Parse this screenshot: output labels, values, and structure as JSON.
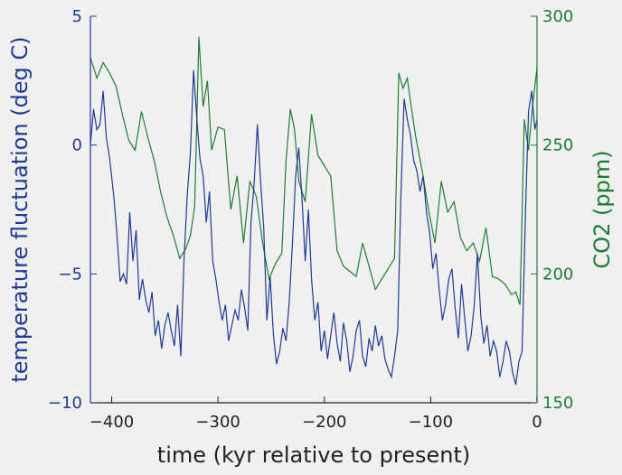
{
  "colors": {
    "background": "#f0f0f0",
    "left_axis": "#1f3a93",
    "right_axis": "#1e7d32",
    "temperature_line": "#1f3a93",
    "co2_line": "#1e7d32",
    "bottom_axis": "#222222"
  },
  "chart_data": {
    "type": "line",
    "title": "",
    "xlabel": "time (kyr relative to present)",
    "ylabel_left": "temperature fluctuation (deg C)",
    "ylabel_right": "CO2 (ppm)",
    "xlim": [
      -420,
      0
    ],
    "ylim_left": [
      -10,
      5
    ],
    "ylim_right": [
      150,
      300
    ],
    "x_ticks": [
      -400,
      -300,
      -200,
      -100,
      0
    ],
    "x_tick_labels": [
      "−400",
      "−300",
      "−200",
      "−100",
      "0"
    ],
    "y_left_ticks": [
      5,
      0,
      -5,
      -10
    ],
    "y_left_tick_labels": [
      "5",
      "0",
      "−5",
      "−10"
    ],
    "y_right_ticks": [
      300,
      250,
      200,
      150
    ],
    "y_right_tick_labels": [
      "300",
      "250",
      "200",
      "150"
    ],
    "grid": false,
    "legend": "none",
    "series": [
      {
        "axis": "left",
        "x": [
          -420,
          -417,
          -414,
          -411,
          -408,
          -405,
          -402,
          -398,
          -395,
          -392,
          -389,
          -386,
          -383,
          -380,
          -377,
          -374,
          -371,
          -368,
          -365,
          -362,
          -359,
          -356,
          -353,
          -350,
          -347,
          -344,
          -341,
          -338,
          -335,
          -332,
          -329,
          -326,
          -323,
          -320,
          -317,
          -314,
          -311,
          -308,
          -305,
          -302,
          -299,
          -296,
          -293,
          -290,
          -287,
          -284,
          -281,
          -278,
          -275,
          -272,
          -269,
          -266,
          -263,
          -260,
          -257,
          -254,
          -251,
          -248,
          -245,
          -242,
          -239,
          -236,
          -233,
          -230,
          -227,
          -224,
          -221,
          -218,
          -215,
          -212,
          -209,
          -206,
          -203,
          -200,
          -197,
          -194,
          -191,
          -188,
          -185,
          -182,
          -179,
          -176,
          -173,
          -170,
          -167,
          -164,
          -161,
          -158,
          -155,
          -152,
          -149,
          -146,
          -143,
          -140,
          -137,
          -134,
          -131,
          -128,
          -125,
          -122,
          -119,
          -116,
          -113,
          -110,
          -107,
          -104,
          -101,
          -98,
          -95,
          -92,
          -89,
          -86,
          -83,
          -80,
          -77,
          -74,
          -71,
          -68,
          -65,
          -62,
          -59,
          -56,
          -53,
          -50,
          -47,
          -44,
          -41,
          -38,
          -35,
          -32,
          -29,
          -26,
          -23,
          -20,
          -17,
          -14,
          -11,
          -8,
          -5,
          -2,
          0
        ],
        "values": [
          0,
          1.4,
          0.6,
          0.8,
          2.1,
          0.3,
          -0.5,
          -2.0,
          -3.5,
          -5.3,
          -5.0,
          -5.4,
          -2.6,
          -4.5,
          -3.3,
          -6.0,
          -5.2,
          -6.0,
          -6.5,
          -5.7,
          -7.4,
          -6.8,
          -7.9,
          -7.0,
          -6.5,
          -7.2,
          -7.8,
          -6.2,
          -8.2,
          -4.5,
          -2.0,
          -0.3,
          2.9,
          1.1,
          -0.5,
          -1.2,
          -3.0,
          -1.8,
          -4.5,
          -5.2,
          -6.1,
          -6.8,
          -6.2,
          -7.6,
          -7.0,
          -6.4,
          -6.8,
          -5.6,
          -6.3,
          -7.2,
          -3.0,
          -1.5,
          0.8,
          -1.4,
          -3.2,
          -6.8,
          -5.1,
          -7.3,
          -8.5,
          -8.0,
          -7.1,
          -7.6,
          -6.1,
          -3.8,
          -1.2,
          -0.1,
          -2.1,
          -4.5,
          -2.5,
          -5.2,
          -6.8,
          -6.1,
          -8.0,
          -7.2,
          -8.3,
          -7.4,
          -6.5,
          -7.7,
          -8.4,
          -6.9,
          -7.6,
          -8.8,
          -8.2,
          -7.2,
          -6.8,
          -8.2,
          -8.6,
          -7.5,
          -8.0,
          -7.0,
          -7.8,
          -7.4,
          -8.3,
          -8.7,
          -9.0,
          -8.2,
          -7.2,
          -2.0,
          1.8,
          1.0,
          0.4,
          -0.6,
          -1.0,
          -1.8,
          -1.2,
          -2.6,
          -3.4,
          -4.8,
          -4.2,
          -5.6,
          -6.8,
          -6.2,
          -5.2,
          -4.8,
          -6.3,
          -7.5,
          -5.4,
          -6.7,
          -8.0,
          -7.4,
          -6.2,
          -4.2,
          -6.6,
          -7.7,
          -7.0,
          -8.2,
          -7.6,
          -8.0,
          -9.0,
          -8.4,
          -7.6,
          -8.0,
          -8.8,
          -9.3,
          -8.4,
          -8.0,
          -2.8,
          1.3,
          2.1,
          0.6,
          1.0
        ]
      },
      {
        "axis": "right",
        "x": [
          -420,
          -414,
          -408,
          -402,
          -396,
          -390,
          -384,
          -378,
          -372,
          -366,
          -360,
          -354,
          -348,
          -342,
          -336,
          -330,
          -326,
          -322,
          -318,
          -314,
          -310,
          -306,
          -300,
          -294,
          -288,
          -282,
          -276,
          -270,
          -264,
          -258,
          -252,
          -246,
          -240,
          -236,
          -232,
          -228,
          -224,
          -218,
          -212,
          -206,
          -200,
          -194,
          -188,
          -182,
          -176,
          -170,
          -164,
          -158,
          -152,
          -146,
          -140,
          -134,
          -130,
          -126,
          -122,
          -118,
          -114,
          -108,
          -102,
          -96,
          -90,
          -84,
          -78,
          -72,
          -66,
          -60,
          -54,
          -48,
          -42,
          -36,
          -30,
          -24,
          -20,
          -16,
          -12,
          -8,
          -4,
          0
        ],
        "values": [
          284,
          276,
          282,
          278,
          273,
          262,
          252,
          248,
          263,
          253,
          244,
          232,
          222,
          215,
          206,
          210,
          215,
          226,
          292,
          265,
          275,
          248,
          257,
          256,
          225,
          238,
          212,
          236,
          230,
          212,
          198,
          204,
          208,
          244,
          264,
          256,
          236,
          228,
          262,
          246,
          242,
          238,
          209,
          203,
          201,
          199,
          212,
          203,
          194,
          198,
          202,
          206,
          278,
          272,
          276,
          264,
          253,
          240,
          225,
          212,
          236,
          224,
          228,
          214,
          209,
          212,
          205,
          218,
          199,
          198,
          196,
          192,
          193,
          188,
          260,
          248,
          266,
          280
        ]
      }
    ]
  }
}
